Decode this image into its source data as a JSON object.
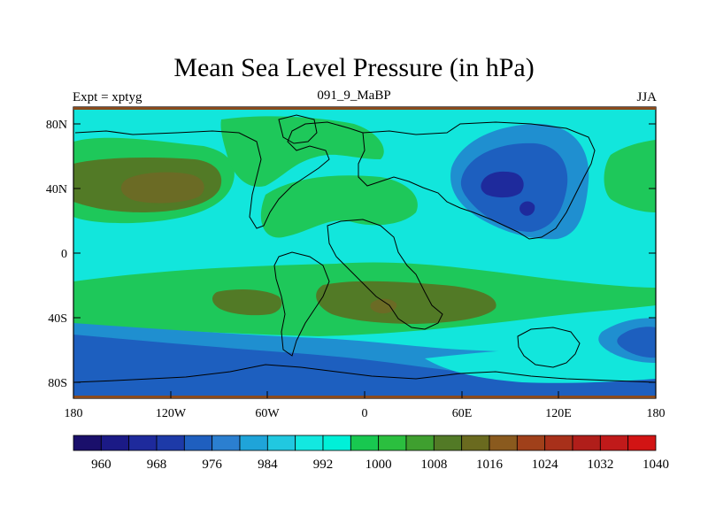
{
  "title": "Mean Sea Level Pressure (in hPa)",
  "subtitle_left": "Expt = xptyg",
  "subtitle_center": "091_9_MaBP",
  "subtitle_right": "JJA",
  "y_ticks": [
    "80N",
    "40N",
    "0",
    "40S",
    "80S"
  ],
  "x_ticks": [
    "180",
    "120W",
    "60W",
    "0",
    "60E",
    "120E",
    "180"
  ],
  "colorbar": {
    "labels": [
      "960",
      "968",
      "976",
      "984",
      "992",
      "1000",
      "1008",
      "1016",
      "1024",
      "1032",
      "1040"
    ],
    "colors": [
      "#1a0f6b",
      "#1b1a86",
      "#1e2a9c",
      "#1d3aa8",
      "#1f5fbf",
      "#2b7fd0",
      "#1fa4d9",
      "#21c8e0",
      "#13e8e0",
      "#00f0d8",
      "#18c850",
      "#2bbf3f",
      "#3f9f2f",
      "#527a26",
      "#6a6a1f",
      "#8a5a1e",
      "#a0401a",
      "#a8301a",
      "#b01e1a",
      "#c01a1a",
      "#d21414"
    ]
  },
  "palette": {
    "deep_blue": "#1e2a9c",
    "blue": "#1d5fbf",
    "mid_blue": "#1f8fd0",
    "cyan": "#12e6dc",
    "green": "#1ec85a",
    "olive": "#527a26",
    "brown": "#6b6b25",
    "border": "#8a4a1c"
  }
}
